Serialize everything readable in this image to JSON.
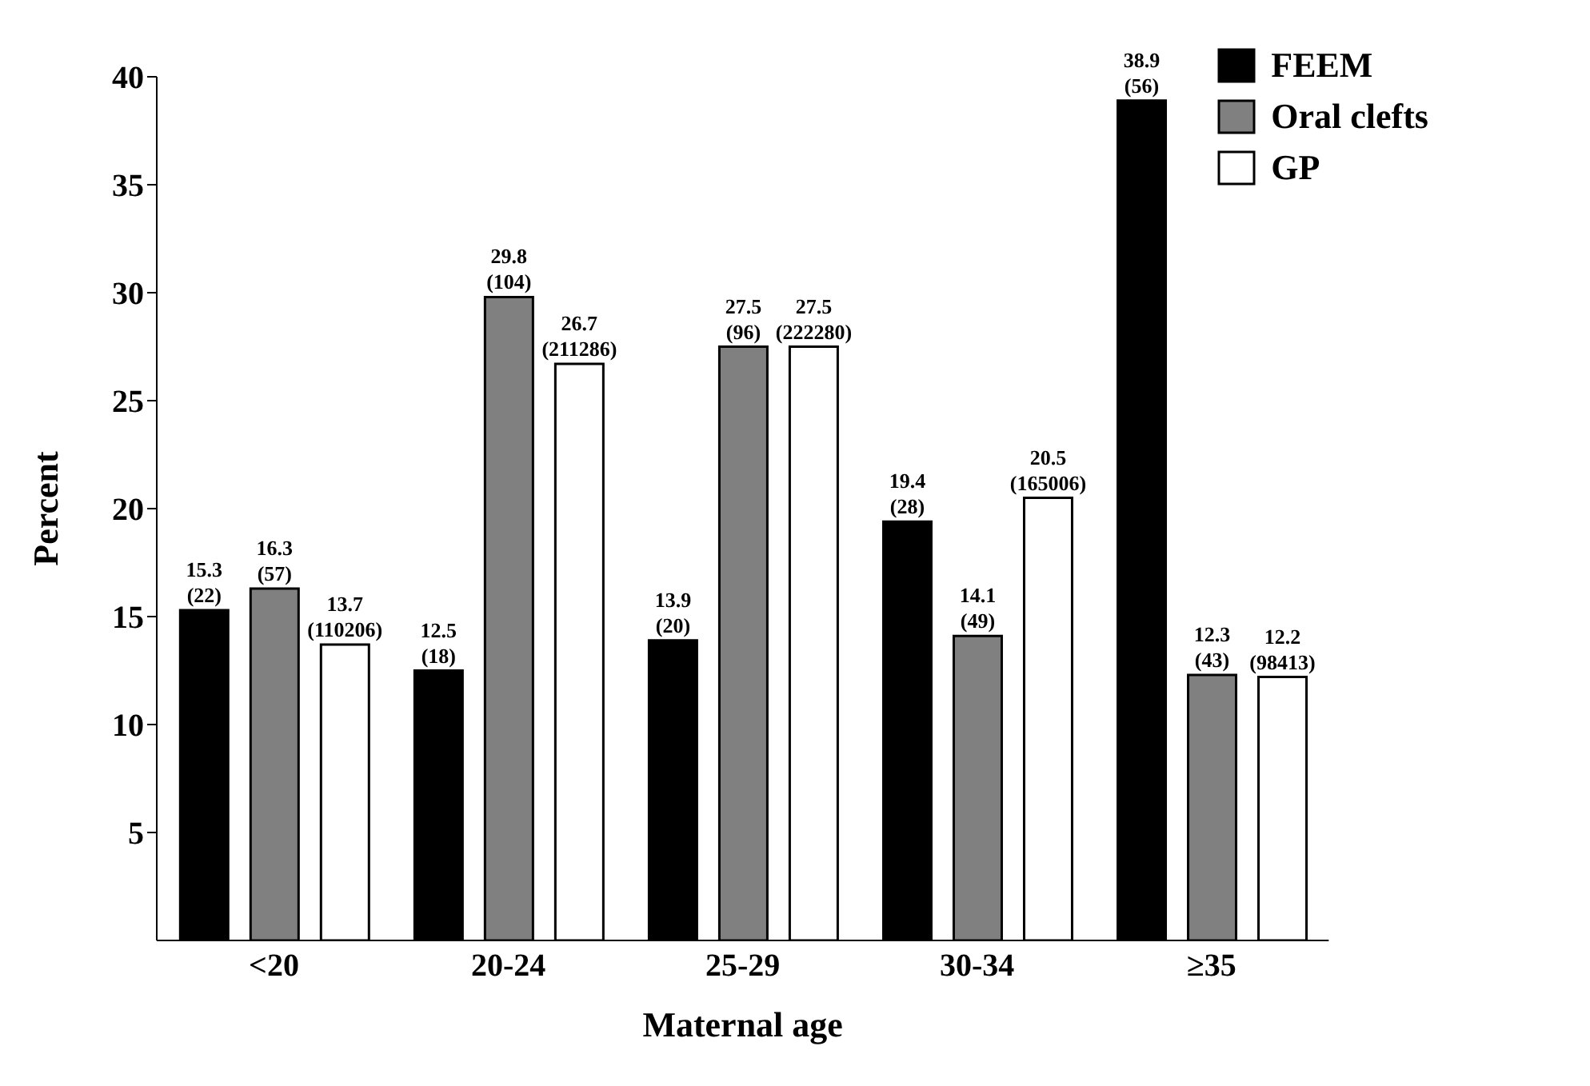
{
  "chart_data": {
    "type": "bar",
    "xlabel": "Maternal age",
    "ylabel": "Percent",
    "categories": [
      "<20",
      "20-24",
      "25-29",
      "30-34",
      "≥35"
    ],
    "series": [
      {
        "name": "FEEM",
        "color": "#000000",
        "values": [
          15.3,
          12.5,
          13.9,
          19.4,
          38.9
        ],
        "value_labels": [
          "15.3\n(22)",
          "12.5\n(18)",
          "13.9\n(20)",
          "19.4\n(28)",
          "38.9\n(56)"
        ]
      },
      {
        "name": "Oral clefts",
        "color": "#808080",
        "values": [
          16.3,
          29.8,
          27.5,
          14.1,
          12.3
        ],
        "value_labels": [
          "16.3\n(57)",
          "29.8\n(104)",
          "27.5\n(96)",
          "14.1\n(49)",
          "12.3\n(43)"
        ]
      },
      {
        "name": "GP",
        "color": "#ffffff",
        "values": [
          13.7,
          26.7,
          27.5,
          20.5,
          12.2
        ],
        "value_labels": [
          "13.7\n(110206)",
          "26.7\n(211286)",
          "27.5\n(222280)",
          "20.5\n(165006)",
          "12.2\n(98413)"
        ]
      }
    ],
    "ylim": [
      0,
      40
    ],
    "yticks": [
      5,
      10,
      15,
      20,
      25,
      30,
      35,
      40
    ],
    "grid": false,
    "legend": "top right"
  }
}
